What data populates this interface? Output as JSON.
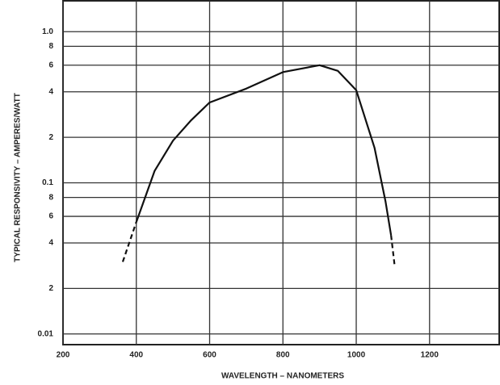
{
  "chart_data": {
    "type": "line",
    "xlabel": "WAVELENGTH – NANOMETERS",
    "ylabel": "TYPICAL RESPONSIVITY – AMPERES/WATT",
    "x": [
      363,
      400,
      450,
      500,
      550,
      600,
      700,
      800,
      900,
      950,
      1000,
      1050,
      1080,
      1095,
      1105
    ],
    "series": [
      {
        "color": "#111111",
        "dash": false,
        "values": [
          null,
          0.055,
          0.12,
          0.19,
          0.26,
          0.34,
          0.42,
          0.54,
          0.6,
          0.55,
          0.41,
          0.17,
          0.075,
          0.045,
          null
        ]
      },
      {
        "color": "#111111",
        "dash": true,
        "values": [
          0.03,
          0.055,
          null,
          null,
          null,
          null,
          null,
          null,
          null,
          null,
          null,
          null,
          null,
          0.045,
          0.028
        ]
      }
    ],
    "xlim": [
      200,
      1390
    ],
    "xticks": [
      200,
      400,
      600,
      800,
      1000,
      1200
    ],
    "ylim": [
      0.0085,
      1.6
    ],
    "ylog": true,
    "yticks": [
      {
        "value": 1,
        "label": "1.0"
      },
      {
        "value": 0.8,
        "label": "8"
      },
      {
        "value": 0.6,
        "label": "6"
      },
      {
        "value": 0.4,
        "label": "4"
      },
      {
        "value": 0.2,
        "label": "2"
      },
      0.1,
      {
        "value": 0.08,
        "label": "8"
      },
      {
        "value": 0.06,
        "label": "6"
      },
      {
        "value": 0.04,
        "label": "4"
      },
      {
        "value": 0.02,
        "label": "2"
      },
      0.01
    ],
    "grid": true
  }
}
